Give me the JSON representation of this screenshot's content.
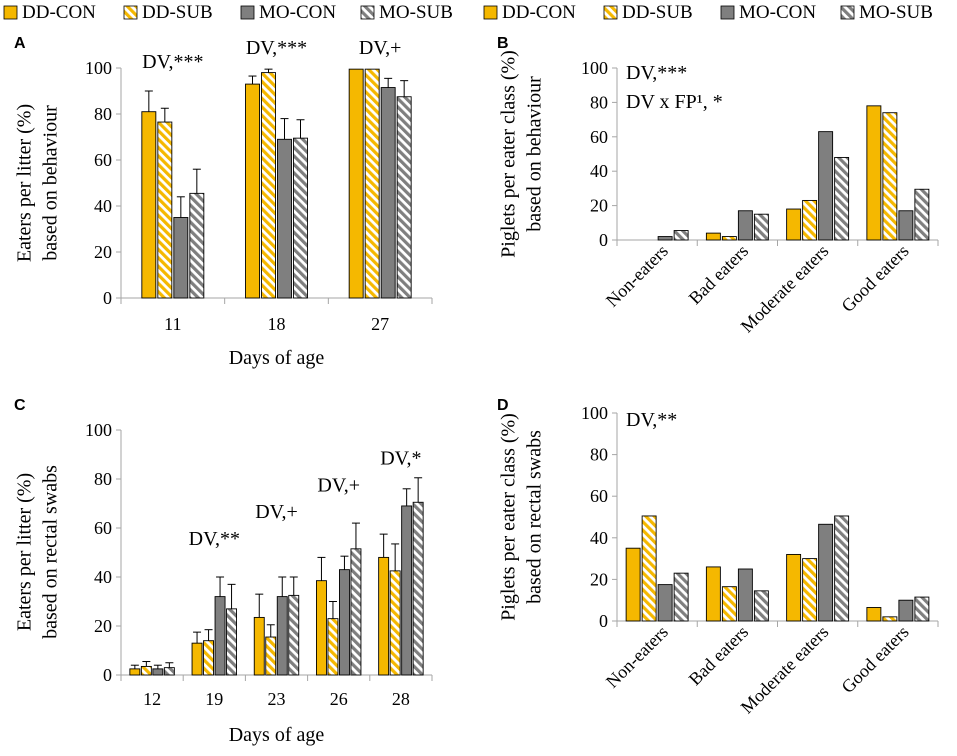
{
  "legend": {
    "items": [
      {
        "name": "DD-CON",
        "pattern": "solid",
        "color": "#f5b800"
      },
      {
        "name": "DD-SUB",
        "pattern": "hatch",
        "color": "#f5b800"
      },
      {
        "name": "MO-CON",
        "pattern": "solid",
        "color": "#7f7f7f"
      },
      {
        "name": "MO-SUB",
        "pattern": "hatch",
        "color": "#7f7f7f"
      }
    ]
  },
  "colors": {
    "dd": "#f5b800",
    "mo": "#7f7f7f",
    "axis": "#a6a6a6",
    "outline": "#000000"
  },
  "chart_data": [
    {
      "panel": "A",
      "type": "bar",
      "ylabel": [
        "Eaters per litter (%)",
        "based on behaviour"
      ],
      "xlabel": "Days of age",
      "ylim": [
        0,
        100
      ],
      "yticks": [
        0,
        20,
        40,
        60,
        80,
        100
      ],
      "categories": [
        "11",
        "18",
        "27"
      ],
      "series": [
        {
          "name": "DD-CON",
          "values": [
            81,
            93,
            99.5
          ],
          "errors": [
            9,
            3.5,
            0
          ]
        },
        {
          "name": "DD-SUB",
          "values": [
            76.5,
            98,
            99.5
          ],
          "errors": [
            6,
            1.5,
            0
          ]
        },
        {
          "name": "MO-CON",
          "values": [
            35,
            69,
            91.5
          ],
          "errors": [
            9,
            9,
            4
          ]
        },
        {
          "name": "MO-SUB",
          "values": [
            45.5,
            69.5,
            87.5
          ],
          "errors": [
            10.5,
            8,
            7
          ]
        }
      ],
      "annotations": [
        {
          "category": 0,
          "text": "DV,***",
          "y": 100
        },
        {
          "category": 1,
          "text": "DV,***",
          "y": 106
        },
        {
          "category": 2,
          "text": "DV,+",
          "y": 106
        }
      ]
    },
    {
      "panel": "B",
      "type": "bar",
      "ylabel": [
        "Piglets per eater class (%)",
        "based on behaviour"
      ],
      "xlabel": "",
      "ylim": [
        0,
        100
      ],
      "yticks": [
        0,
        20,
        40,
        60,
        80,
        100
      ],
      "categories": [
        "Non-eaters",
        "Bad eaters",
        "Moderate eaters",
        "Good eaters"
      ],
      "series": [
        {
          "name": "DD-CON",
          "values": [
            0,
            4,
            18,
            78
          ]
        },
        {
          "name": "DD-SUB",
          "values": [
            0,
            2,
            23,
            74
          ]
        },
        {
          "name": "MO-CON",
          "values": [
            2,
            17,
            63,
            17
          ]
        },
        {
          "name": "MO-SUB",
          "values": [
            5.5,
            15,
            48,
            29.5
          ]
        }
      ],
      "annotations": [
        {
          "text": "DV,***",
          "line": 1
        },
        {
          "text": "DV x FP¹, *",
          "line": 2
        }
      ]
    },
    {
      "panel": "C",
      "type": "bar",
      "ylabel": [
        "Eaters per litter (%)",
        "based on rectal swabs"
      ],
      "xlabel": "Days of age",
      "ylim": [
        0,
        100
      ],
      "yticks": [
        0,
        20,
        40,
        60,
        80,
        100
      ],
      "categories": [
        "12",
        "19",
        "23",
        "26",
        "28"
      ],
      "series": [
        {
          "name": "DD-CON",
          "values": [
            2.5,
            13,
            23.5,
            38.5,
            48
          ],
          "errors": [
            1.5,
            4.5,
            9.5,
            9.5,
            9.5
          ]
        },
        {
          "name": "DD-SUB",
          "values": [
            3.5,
            14,
            15.5,
            23,
            42.5
          ],
          "errors": [
            2,
            4.5,
            5,
            7,
            11
          ]
        },
        {
          "name": "MO-CON",
          "values": [
            2.5,
            32,
            32,
            43,
            69
          ],
          "errors": [
            1.5,
            8,
            8,
            5.5,
            7
          ]
        },
        {
          "name": "MO-SUB",
          "values": [
            3,
            27,
            32.5,
            51.5,
            70.5
          ],
          "errors": [
            2,
            10,
            7.5,
            10.5,
            10
          ]
        }
      ],
      "annotations": [
        {
          "category": 1,
          "text": "DV,**",
          "y": 53
        },
        {
          "category": 2,
          "text": "DV,+",
          "y": 64
        },
        {
          "category": 3,
          "text": "DV,+",
          "y": 75
        },
        {
          "category": 4,
          "text": "DV,*",
          "y": 86
        }
      ]
    },
    {
      "panel": "D",
      "type": "bar",
      "ylabel": [
        "Piglets per eater class (%)",
        "based on rectal swabs"
      ],
      "xlabel": "",
      "ylim": [
        0,
        100
      ],
      "yticks": [
        0,
        20,
        40,
        60,
        80,
        100
      ],
      "categories": [
        "Non-eaters",
        "Bad eaters",
        "Moderate eaters",
        "Good eaters"
      ],
      "series": [
        {
          "name": "DD-CON",
          "values": [
            35,
            26,
            32,
            6.5
          ]
        },
        {
          "name": "DD-SUB",
          "values": [
            50.5,
            16.5,
            30,
            2
          ]
        },
        {
          "name": "MO-CON",
          "values": [
            17.5,
            25,
            46.5,
            10
          ]
        },
        {
          "name": "MO-SUB",
          "values": [
            23,
            14.5,
            50.5,
            11.5
          ]
        }
      ],
      "annotations": [
        {
          "text": "DV,**",
          "line": 1
        }
      ]
    }
  ]
}
